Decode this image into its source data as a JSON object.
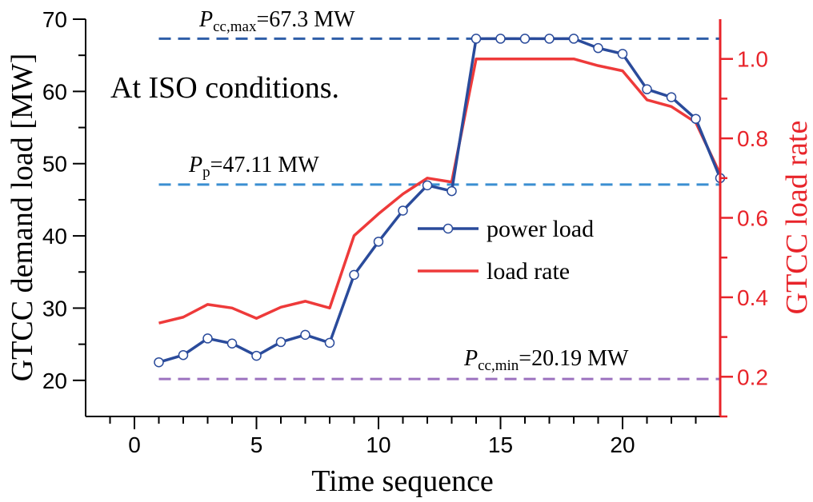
{
  "chart_data": {
    "type": "line",
    "annotation": "At ISO conditions.",
    "xlabel": "Time sequence",
    "ylabel_left": "GTCC demand load [MW]",
    "ylabel_right": "GTCC load rate",
    "xlim": [
      -2,
      24
    ],
    "ylim_left": [
      15,
      70
    ],
    "ylim_right": [
      0.1,
      1.1
    ],
    "x_ticks": [
      0,
      5,
      10,
      15,
      20
    ],
    "y_left_ticks": [
      20,
      30,
      40,
      50,
      60,
      70
    ],
    "y_right_ticks": [
      0.2,
      0.4,
      0.6,
      0.8,
      1.0
    ],
    "x_tick_labels": [
      "0",
      "5",
      "10",
      "15",
      "20"
    ],
    "y_left_tick_labels": [
      "20",
      "30",
      "40",
      "50",
      "60",
      "70"
    ],
    "y_right_tick_labels": [
      "0.2",
      "0.4",
      "0.6",
      "0.8",
      "1.0"
    ],
    "colors": {
      "power_load": "#2a4b9b",
      "load_rate": "#ee3a3a",
      "right_axis": "#e8242a",
      "pcc_max": "#2f5ea8",
      "p_p": "#3b8fd1",
      "pcc_min": "#9c72bf"
    },
    "reference_lines": [
      {
        "id": "pcc_max",
        "y": 67.3,
        "symbol": "P",
        "subscript": "cc,max",
        "value_text": "=67.3 MW"
      },
      {
        "id": "p_p",
        "y": 47.11,
        "symbol": "P",
        "subscript": "p",
        "value_text": "=47.11 MW"
      },
      {
        "id": "pcc_min",
        "y": 20.19,
        "symbol": "P",
        "subscript": "cc,min",
        "value_text": "=20.19 MW"
      }
    ],
    "series": [
      {
        "name": "power load",
        "axis": "left",
        "marker": "circle",
        "x": [
          1,
          2,
          3,
          4,
          5,
          6,
          7,
          8,
          9,
          10,
          11,
          12,
          13,
          14,
          15,
          16,
          17,
          18,
          19,
          20,
          21,
          22,
          23,
          24
        ],
        "values": [
          22.5,
          23.5,
          25.8,
          25.1,
          23.4,
          25.3,
          26.3,
          25.2,
          34.6,
          39.2,
          43.5,
          47.0,
          46.2,
          67.3,
          67.3,
          67.3,
          67.3,
          67.3,
          66.0,
          65.2,
          60.3,
          59.2,
          56.2,
          48.0
        ]
      },
      {
        "name": "load rate",
        "axis": "right",
        "marker": "none",
        "x": [
          1,
          2,
          3,
          4,
          5,
          6,
          7,
          8,
          9,
          10,
          11,
          12,
          13,
          14,
          15,
          16,
          17,
          18,
          19,
          20,
          21,
          22,
          23,
          24
        ],
        "values": [
          0.335,
          0.35,
          0.382,
          0.373,
          0.347,
          0.375,
          0.39,
          0.373,
          0.555,
          0.61,
          0.66,
          0.7,
          0.69,
          1.0,
          1.0,
          1.0,
          1.0,
          1.0,
          0.983,
          0.97,
          0.897,
          0.88,
          0.84,
          0.71
        ]
      }
    ]
  }
}
